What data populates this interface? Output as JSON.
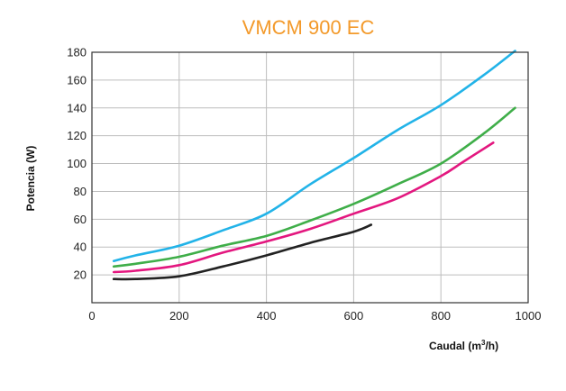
{
  "chart_data": {
    "type": "line",
    "title": "VMCM 900 EC",
    "xlabel": "Caudal (m",
    "xlabel_sup": "3",
    "xlabel_tail": "/h)",
    "ylabel": "Potencia (W)",
    "xlim": [
      0,
      1000
    ],
    "ylim": [
      0,
      180
    ],
    "xticks": [
      0,
      200,
      400,
      600,
      800,
      1000
    ],
    "yticks": [
      20,
      40,
      60,
      80,
      100,
      120,
      140,
      160,
      180
    ],
    "grid": true,
    "series": [
      {
        "color": "#22b3e8",
        "points": [
          [
            50,
            30
          ],
          [
            100,
            34
          ],
          [
            200,
            41
          ],
          [
            300,
            52
          ],
          [
            400,
            64
          ],
          [
            500,
            85
          ],
          [
            600,
            104
          ],
          [
            700,
            124
          ],
          [
            800,
            142
          ],
          [
            900,
            164
          ],
          [
            970,
            181
          ]
        ]
      },
      {
        "color": "#3fae49",
        "points": [
          [
            50,
            26
          ],
          [
            100,
            28
          ],
          [
            200,
            33
          ],
          [
            300,
            41
          ],
          [
            400,
            48
          ],
          [
            500,
            59
          ],
          [
            600,
            71
          ],
          [
            700,
            85
          ],
          [
            800,
            100
          ],
          [
            900,
            122
          ],
          [
            970,
            140
          ]
        ]
      },
      {
        "color": "#e3177f",
        "points": [
          [
            50,
            22
          ],
          [
            100,
            23
          ],
          [
            200,
            27
          ],
          [
            300,
            36
          ],
          [
            400,
            44
          ],
          [
            500,
            53
          ],
          [
            600,
            64
          ],
          [
            700,
            75
          ],
          [
            800,
            91
          ],
          [
            850,
            101
          ],
          [
            920,
            115
          ]
        ]
      },
      {
        "color": "#222222",
        "points": [
          [
            50,
            17
          ],
          [
            100,
            17
          ],
          [
            200,
            19
          ],
          [
            300,
            26
          ],
          [
            400,
            34
          ],
          [
            500,
            43
          ],
          [
            600,
            51
          ],
          [
            640,
            56
          ]
        ]
      }
    ]
  },
  "colors": {
    "title": "#f39a2b"
  }
}
